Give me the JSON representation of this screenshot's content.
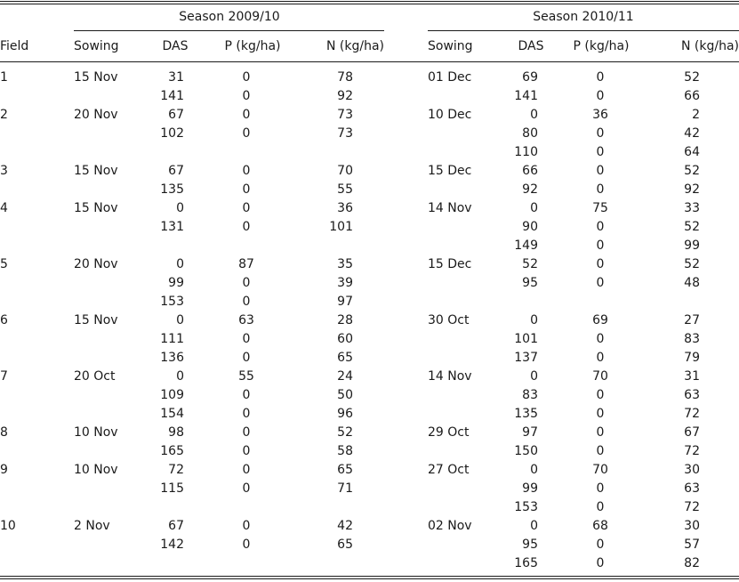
{
  "header": {
    "field": "Field",
    "seasons": [
      {
        "title": "Season 2009/10",
        "columns": [
          "Sowing",
          "DAS",
          "P (kg/ha)",
          "N (kg/ha)"
        ]
      },
      {
        "title": "Season 2010/11",
        "columns": [
          "Sowing",
          "DAS",
          "P (kg/ha)",
          "N (kg/ha)"
        ]
      }
    ]
  },
  "table": {
    "fields": [
      {
        "field": 1,
        "seasons": [
          {
            "sowing": "15 Nov",
            "rows": [
              [
                31,
                0,
                78
              ],
              [
                141,
                0,
                92
              ]
            ]
          },
          {
            "sowing": "01 Dec",
            "rows": [
              [
                69,
                0,
                52
              ],
              [
                141,
                0,
                66
              ]
            ]
          }
        ]
      },
      {
        "field": 2,
        "seasons": [
          {
            "sowing": "20 Nov",
            "rows": [
              [
                67,
                0,
                73
              ],
              [
                102,
                0,
                73
              ]
            ]
          },
          {
            "sowing": "10 Dec",
            "rows": [
              [
                0,
                36,
                2
              ],
              [
                80,
                0,
                42
              ],
              [
                110,
                0,
                64
              ]
            ]
          }
        ]
      },
      {
        "field": 3,
        "seasons": [
          {
            "sowing": "15 Nov",
            "rows": [
              [
                67,
                0,
                70
              ],
              [
                135,
                0,
                55
              ]
            ]
          },
          {
            "sowing": "15 Dec",
            "rows": [
              [
                66,
                0,
                52
              ],
              [
                92,
                0,
                92
              ]
            ]
          }
        ]
      },
      {
        "field": 4,
        "seasons": [
          {
            "sowing": "15 Nov",
            "rows": [
              [
                0,
                0,
                36
              ],
              [
                131,
                0,
                101
              ]
            ]
          },
          {
            "sowing": "14 Nov",
            "rows": [
              [
                0,
                75,
                33
              ],
              [
                90,
                0,
                52
              ],
              [
                149,
                0,
                99
              ]
            ]
          }
        ]
      },
      {
        "field": 5,
        "seasons": [
          {
            "sowing": "20 Nov",
            "rows": [
              [
                0,
                87,
                35
              ],
              [
                99,
                0,
                39
              ],
              [
                153,
                0,
                97
              ]
            ]
          },
          {
            "sowing": "15 Dec",
            "rows": [
              [
                52,
                0,
                52
              ],
              [
                95,
                0,
                48
              ]
            ]
          }
        ]
      },
      {
        "field": 6,
        "seasons": [
          {
            "sowing": "15 Nov",
            "rows": [
              [
                0,
                63,
                28
              ],
              [
                111,
                0,
                60
              ],
              [
                136,
                0,
                65
              ]
            ]
          },
          {
            "sowing": "30 Oct",
            "rows": [
              [
                0,
                69,
                27
              ],
              [
                101,
                0,
                83
              ],
              [
                137,
                0,
                79
              ]
            ]
          }
        ]
      },
      {
        "field": 7,
        "seasons": [
          {
            "sowing": "20 Oct",
            "rows": [
              [
                0,
                55,
                24
              ],
              [
                109,
                0,
                50
              ],
              [
                154,
                0,
                96
              ]
            ]
          },
          {
            "sowing": "14 Nov",
            "rows": [
              [
                0,
                70,
                31
              ],
              [
                83,
                0,
                63
              ],
              [
                135,
                0,
                72
              ]
            ]
          }
        ]
      },
      {
        "field": 8,
        "seasons": [
          {
            "sowing": "10 Nov",
            "rows": [
              [
                98,
                0,
                52
              ],
              [
                165,
                0,
                58
              ]
            ]
          },
          {
            "sowing": "29 Oct",
            "rows": [
              [
                97,
                0,
                67
              ],
              [
                150,
                0,
                72
              ]
            ]
          }
        ]
      },
      {
        "field": 9,
        "seasons": [
          {
            "sowing": "10 Nov",
            "rows": [
              [
                72,
                0,
                65
              ],
              [
                115,
                0,
                71
              ]
            ]
          },
          {
            "sowing": "27 Oct",
            "rows": [
              [
                0,
                70,
                30
              ],
              [
                99,
                0,
                63
              ],
              [
                153,
                0,
                72
              ]
            ]
          }
        ]
      },
      {
        "field": 10,
        "seasons": [
          {
            "sowing": "2 Nov",
            "rows": [
              [
                67,
                0,
                42
              ],
              [
                142,
                0,
                65
              ]
            ]
          },
          {
            "sowing": "02 Nov",
            "rows": [
              [
                0,
                68,
                30
              ],
              [
                95,
                0,
                57
              ],
              [
                165,
                0,
                82
              ]
            ]
          }
        ]
      }
    ]
  }
}
